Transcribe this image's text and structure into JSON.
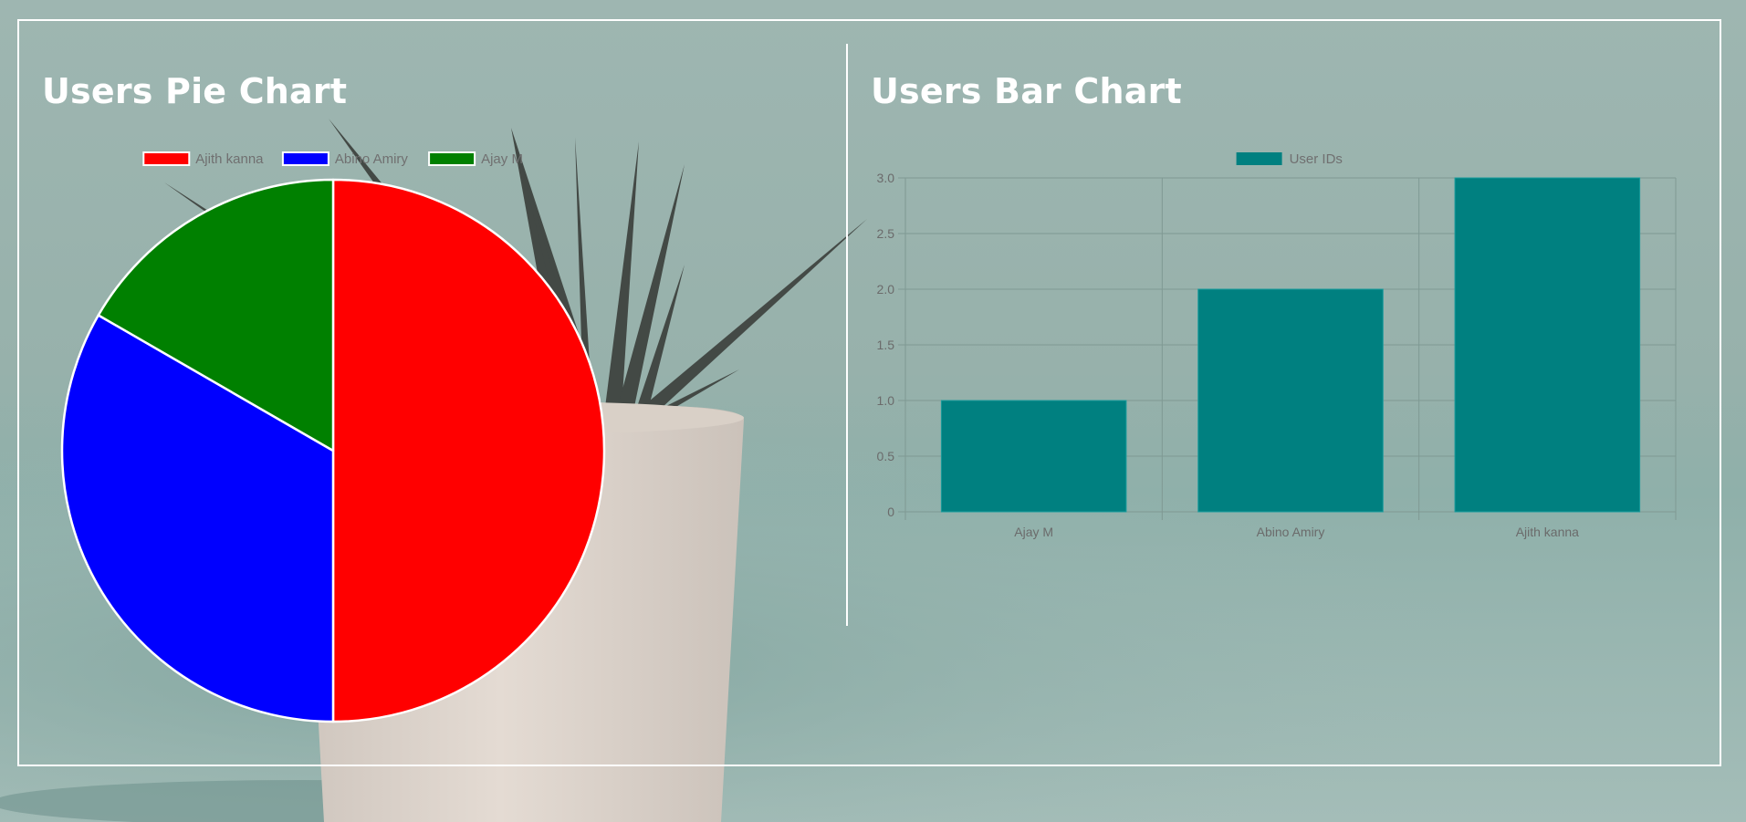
{
  "pie_section": {
    "title": "Users Pie Chart"
  },
  "bar_section": {
    "title": "Users Bar Chart"
  },
  "chart_data": [
    {
      "type": "pie",
      "title": "Users Pie Chart",
      "categories": [
        "Ajith kanna",
        "Abino  Amiry",
        "Ajay M"
      ],
      "values": [
        3,
        2,
        1
      ],
      "colors": [
        "#ff0000",
        "#0000ff",
        "#008000"
      ],
      "legend": "top"
    },
    {
      "type": "bar",
      "title": "Users Bar Chart",
      "categories": [
        "Ajay M",
        "Abino  Amiry",
        "Ajith kanna"
      ],
      "series": [
        {
          "name": "User IDs",
          "values": [
            1,
            2,
            3
          ],
          "color": "#008080"
        }
      ],
      "yticks": [
        "0",
        "0.5",
        "1.0",
        "1.5",
        "2.0",
        "2.5",
        "3.0"
      ],
      "ylim": [
        0,
        3
      ],
      "grid": true,
      "legend": "top"
    }
  ]
}
